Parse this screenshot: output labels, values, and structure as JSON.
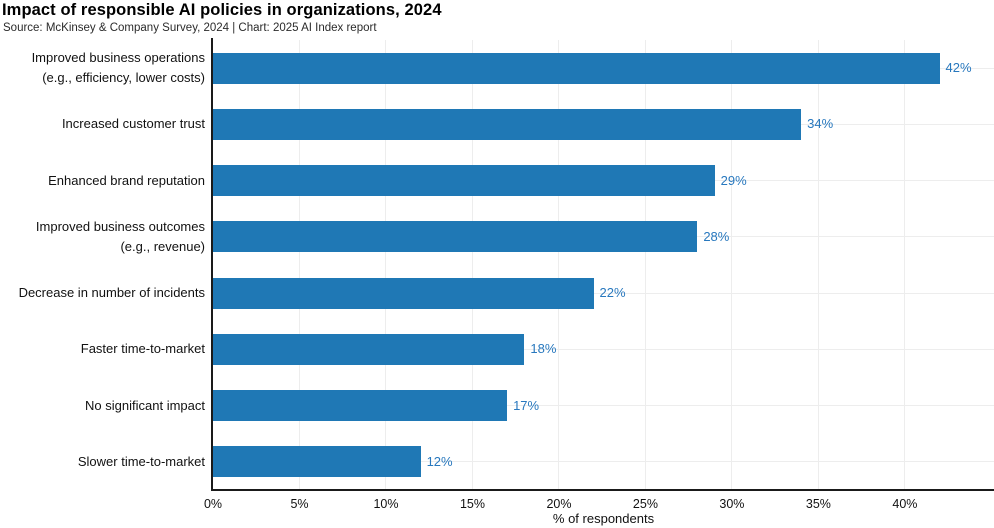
{
  "chart_data": {
    "type": "bar",
    "orientation": "horizontal",
    "title": "Impact of responsible AI policies in organizations, 2024",
    "source": "Source: McKinsey & Company Survey, 2024 | Chart: 2025 AI Index report",
    "categories": [
      [
        "Improved business operations",
        "(e.g., efficiency, lower costs)"
      ],
      [
        "Increased customer trust"
      ],
      [
        "Enhanced brand reputation"
      ],
      [
        "Improved business outcomes",
        "(e.g., revenue)"
      ],
      [
        "Decrease in number of incidents"
      ],
      [
        "Faster time-to-market"
      ],
      [
        "No significant impact"
      ],
      [
        "Slower time-to-market"
      ]
    ],
    "values": [
      42,
      34,
      29,
      28,
      22,
      18,
      17,
      12
    ],
    "value_labels": [
      "42%",
      "34%",
      "29%",
      "28%",
      "22%",
      "18%",
      "17%",
      "12%"
    ],
    "xlabel": "% of respondents",
    "x_ticks": [
      "0%",
      "5%",
      "10%",
      "15%",
      "20%",
      "25%",
      "30%",
      "35%",
      "40%"
    ],
    "x_tick_values": [
      0,
      5,
      10,
      15,
      20,
      25,
      30,
      35,
      40
    ],
    "xlim": [
      0,
      45.15
    ],
    "grid": true,
    "legend": "none",
    "colors": {
      "bar": "#1f78b5",
      "value_label": "#2878be",
      "axis": "#1a1a1a",
      "grid": "#ededed",
      "title": "#000000",
      "text": "#111111"
    }
  }
}
